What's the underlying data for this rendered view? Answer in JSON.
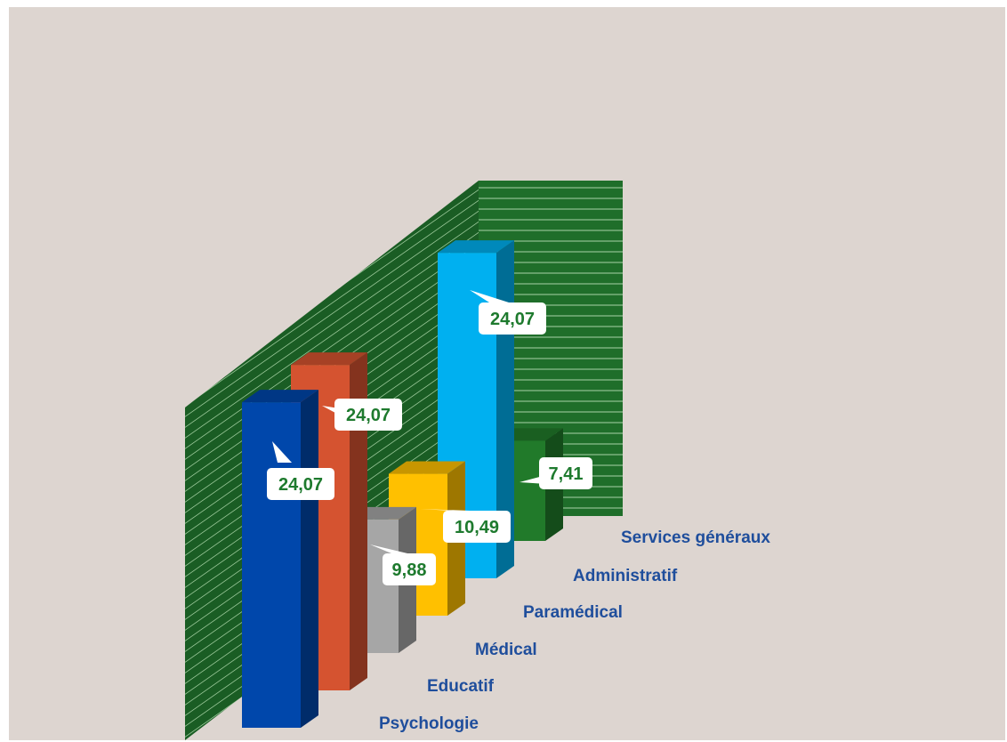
{
  "chart_data": {
    "type": "bar",
    "style": "3d-column",
    "categories": [
      "Psychologie",
      "Educatif",
      "Médical",
      "Paramédical",
      "Administratif",
      "Services généraux"
    ],
    "values": [
      24.07,
      24.07,
      9.88,
      10.49,
      24.07,
      7.41
    ],
    "value_labels": [
      "24,07",
      "24,07",
      "9,88",
      "10,49",
      "24,07",
      "7,41"
    ],
    "colors": [
      "#0047ab",
      "#d55330",
      "#a6a6a6",
      "#ffc000",
      "#00b0f0",
      "#217a2a"
    ],
    "wall_color": "#1f6e2a",
    "background": "#ddd5d0",
    "label_color": "#1f4e9c",
    "value_label_color": "#1e7a2e",
    "title": "",
    "xlabel": "",
    "ylabel": "",
    "grid": false,
    "legend": "none"
  }
}
